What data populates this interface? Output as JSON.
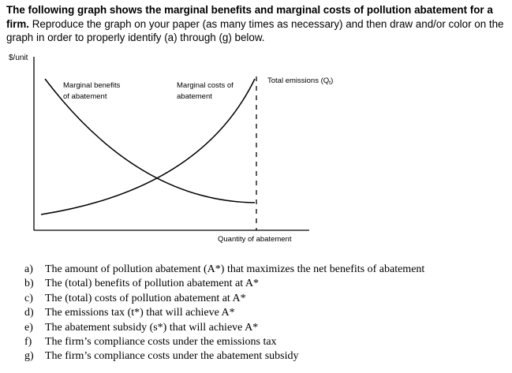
{
  "intro": {
    "bold_sentence": "The following graph shows the marginal benefits and marginal costs of pollution abatement for a firm.",
    "rest": "Reproduce the graph on your paper (as many times as necessary) and then draw and/or color on the graph in order to properly identify (a) through (g) below."
  },
  "graph": {
    "y_axis_label": "$/unit",
    "x_axis_label": "Quantity of abatement",
    "mb_label_line1": "Marginal benefits",
    "mb_label_line2": "of abatement",
    "mc_label_line1": "Marginal costs of",
    "mc_label_line2": "abatement",
    "total_emissions_label": "Total emissions (Q",
    "total_emissions_subscript": "t",
    "total_emissions_close": ")"
  },
  "questions": [
    {
      "letter": "a)",
      "text": "The amount of pollution abatement (A*) that maximizes the net benefits of abatement"
    },
    {
      "letter": "b)",
      "text": "The (total) benefits of pollution abatement at A*"
    },
    {
      "letter": "c)",
      "text": "The (total) costs of pollution abatement at A*"
    },
    {
      "letter": "d)",
      "text": "The emissions tax (t*) that will achieve A*"
    },
    {
      "letter": "e)",
      "text": "The abatement subsidy (s*) that will achieve A*"
    },
    {
      "letter": "f)",
      "text": "The firm’s compliance costs under the emissions tax"
    },
    {
      "letter": "g)",
      "text": "The firm’s compliance costs under the abatement subsidy"
    }
  ]
}
